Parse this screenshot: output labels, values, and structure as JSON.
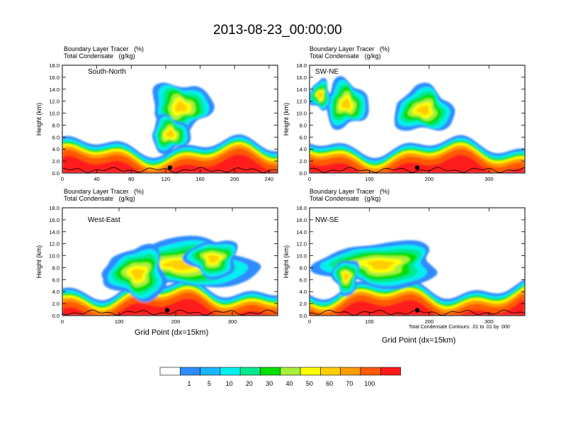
{
  "title": "2013-08-23_00:00:00",
  "color_scale": {
    "colors": [
      "#ffffff",
      "#2f8cff",
      "#19b6ff",
      "#00f0f0",
      "#00e98e",
      "#00df00",
      "#a6f03c",
      "#ffff00",
      "#ffce00",
      "#ff9d00",
      "#ff5a00",
      "#ff1a1a"
    ],
    "labels": [
      "1",
      "5",
      "10",
      "20",
      "30",
      "40",
      "50",
      "60",
      "70",
      "100"
    ]
  },
  "contour_note": "Total Condensate Contours: .01 to .01 by .000",
  "chart_data": [
    {
      "type": "heatmap",
      "panel_label": "South-North",
      "fields": [
        "Boundary Layer Tracer",
        "(%)",
        "Total Condensate",
        "(g/kg)"
      ],
      "ylabel": "Height (km)",
      "xlabel": "",
      "xlim": [
        0,
        250
      ],
      "ylim": [
        0,
        18
      ],
      "xticks": [
        "0",
        "40",
        "80",
        "120",
        "160",
        "200",
        "240"
      ],
      "yticks": [
        "0.0",
        "2.0",
        "4.0",
        "6.0",
        "8.0",
        "10.0",
        "12.0",
        "14.0",
        "16.0",
        "18.0"
      ],
      "marker_x": 125
    },
    {
      "type": "heatmap",
      "panel_label": "SW-NE",
      "fields": [
        "Boundary Layer Tracer",
        "(%)",
        "Total Condensate",
        "(g/kg)"
      ],
      "ylabel": "Height (km)",
      "xlabel": "",
      "xlim": [
        0,
        360
      ],
      "ylim": [
        0,
        18
      ],
      "xticks": [
        "0",
        "100",
        "200",
        "300"
      ],
      "yticks": [
        "0.0",
        "2.0",
        "4.0",
        "6.0",
        "8.0",
        "10.0",
        "12.0",
        "14.0",
        "16.0",
        "18.0"
      ],
      "marker_x": 180
    },
    {
      "type": "heatmap",
      "panel_label": "West-East",
      "fields": [
        "Boundary Layer Tracer",
        "(%)",
        "Total Condensate",
        "(g/kg)"
      ],
      "ylabel": "Height (km)",
      "xlabel": "Grid Point (dx=15km)",
      "xlim": [
        0,
        380
      ],
      "ylim": [
        0,
        18
      ],
      "xticks": [
        "0",
        "100",
        "200",
        "300"
      ],
      "yticks": [
        "0.0",
        "2.0",
        "4.0",
        "6.0",
        "8.0",
        "10.0",
        "12.0",
        "14.0",
        "16.0",
        "18.0"
      ],
      "marker_x": 185
    },
    {
      "type": "heatmap",
      "panel_label": "NW-SE",
      "fields": [
        "Boundary Layer Tracer",
        "(%)",
        "Total Condensate",
        "(g/kg)"
      ],
      "ylabel": "Height (km)",
      "xlabel": "Grid Point (dx=15km)",
      "xlim": [
        0,
        360
      ],
      "ylim": [
        0,
        18
      ],
      "xticks": [
        "0",
        "100",
        "200",
        "300"
      ],
      "yticks": [
        "0.0",
        "2.0",
        "4.0",
        "6.0",
        "8.0",
        "10.0",
        "12.0",
        "14.0",
        "16.0",
        "18.0"
      ],
      "marker_x": 180
    }
  ]
}
